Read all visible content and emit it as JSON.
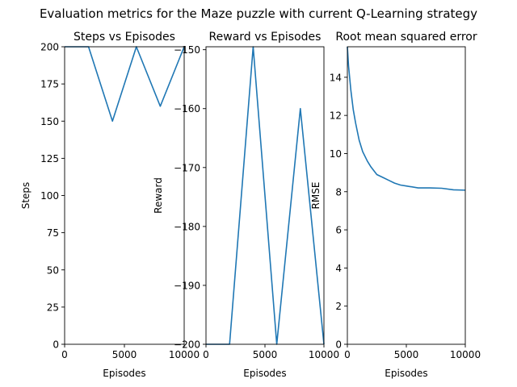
{
  "suptitle": "Evaluation metrics for the Maze puzzle with current Q-Learning strategy",
  "line_color": "#1f77b4",
  "chart_data": [
    {
      "type": "line",
      "title": "Steps vs Episodes",
      "xlabel": "Episodes",
      "ylabel": "Steps",
      "xlim": [
        0,
        10000
      ],
      "ylim": [
        0,
        200
      ],
      "xticks": [
        0,
        5000,
        10000
      ],
      "xtick_labels": [
        "0",
        "5000",
        "10000"
      ],
      "yticks": [
        0,
        25,
        50,
        75,
        100,
        125,
        150,
        175,
        200
      ],
      "ytick_labels": [
        "0",
        "25",
        "50",
        "75",
        "100",
        "125",
        "150",
        "175",
        "200"
      ],
      "grid": false,
      "series": [
        {
          "x": [
            0,
            2000,
            4000,
            6000,
            8000,
            10000
          ],
          "y": [
            200,
            200,
            150,
            200,
            160,
            200
          ]
        }
      ]
    },
    {
      "type": "line",
      "title": "Reward vs Episodes",
      "xlabel": "Episodes",
      "ylabel": "Reward",
      "xlim": [
        0,
        10000
      ],
      "ylim": [
        -200,
        -149.5
      ],
      "xticks": [
        0,
        5000,
        10000
      ],
      "xtick_labels": [
        "0",
        "5000",
        "10000"
      ],
      "yticks": [
        -200,
        -190,
        -180,
        -170,
        -160,
        -150
      ],
      "ytick_labels": [
        "−200",
        "−190",
        "−180",
        "−170",
        "−160",
        "−150"
      ],
      "grid": false,
      "series": [
        {
          "x": [
            0,
            2000,
            4000,
            6000,
            8000,
            10000
          ],
          "y": [
            -200,
            -200,
            -149.5,
            -200,
            -160,
            -200
          ]
        }
      ]
    },
    {
      "type": "line",
      "title": "Root mean squared error",
      "xlabel": "Episodes",
      "ylabel": "RMSE",
      "xlim": [
        0,
        10000
      ],
      "ylim": [
        0,
        15.6
      ],
      "xticks": [
        0,
        5000,
        10000
      ],
      "xtick_labels": [
        "0",
        "5000",
        "10000"
      ],
      "yticks": [
        0,
        2,
        4,
        6,
        8,
        10,
        12,
        14
      ],
      "ytick_labels": [
        "0",
        "2",
        "4",
        "6",
        "8",
        "10",
        "12",
        "14"
      ],
      "grid": false,
      "series": [
        {
          "x": [
            0,
            100,
            300,
            500,
            700,
            1000,
            1300,
            1700,
            2000,
            2500,
            3000,
            3500,
            4000,
            4500,
            5000,
            6000,
            7000,
            8000,
            9000,
            10000
          ],
          "y": [
            15.6,
            14.6,
            13.3,
            12.3,
            11.6,
            10.7,
            10.1,
            9.6,
            9.3,
            8.9,
            8.75,
            8.6,
            8.45,
            8.35,
            8.3,
            8.2,
            8.2,
            8.18,
            8.1,
            8.08
          ]
        }
      ]
    }
  ]
}
